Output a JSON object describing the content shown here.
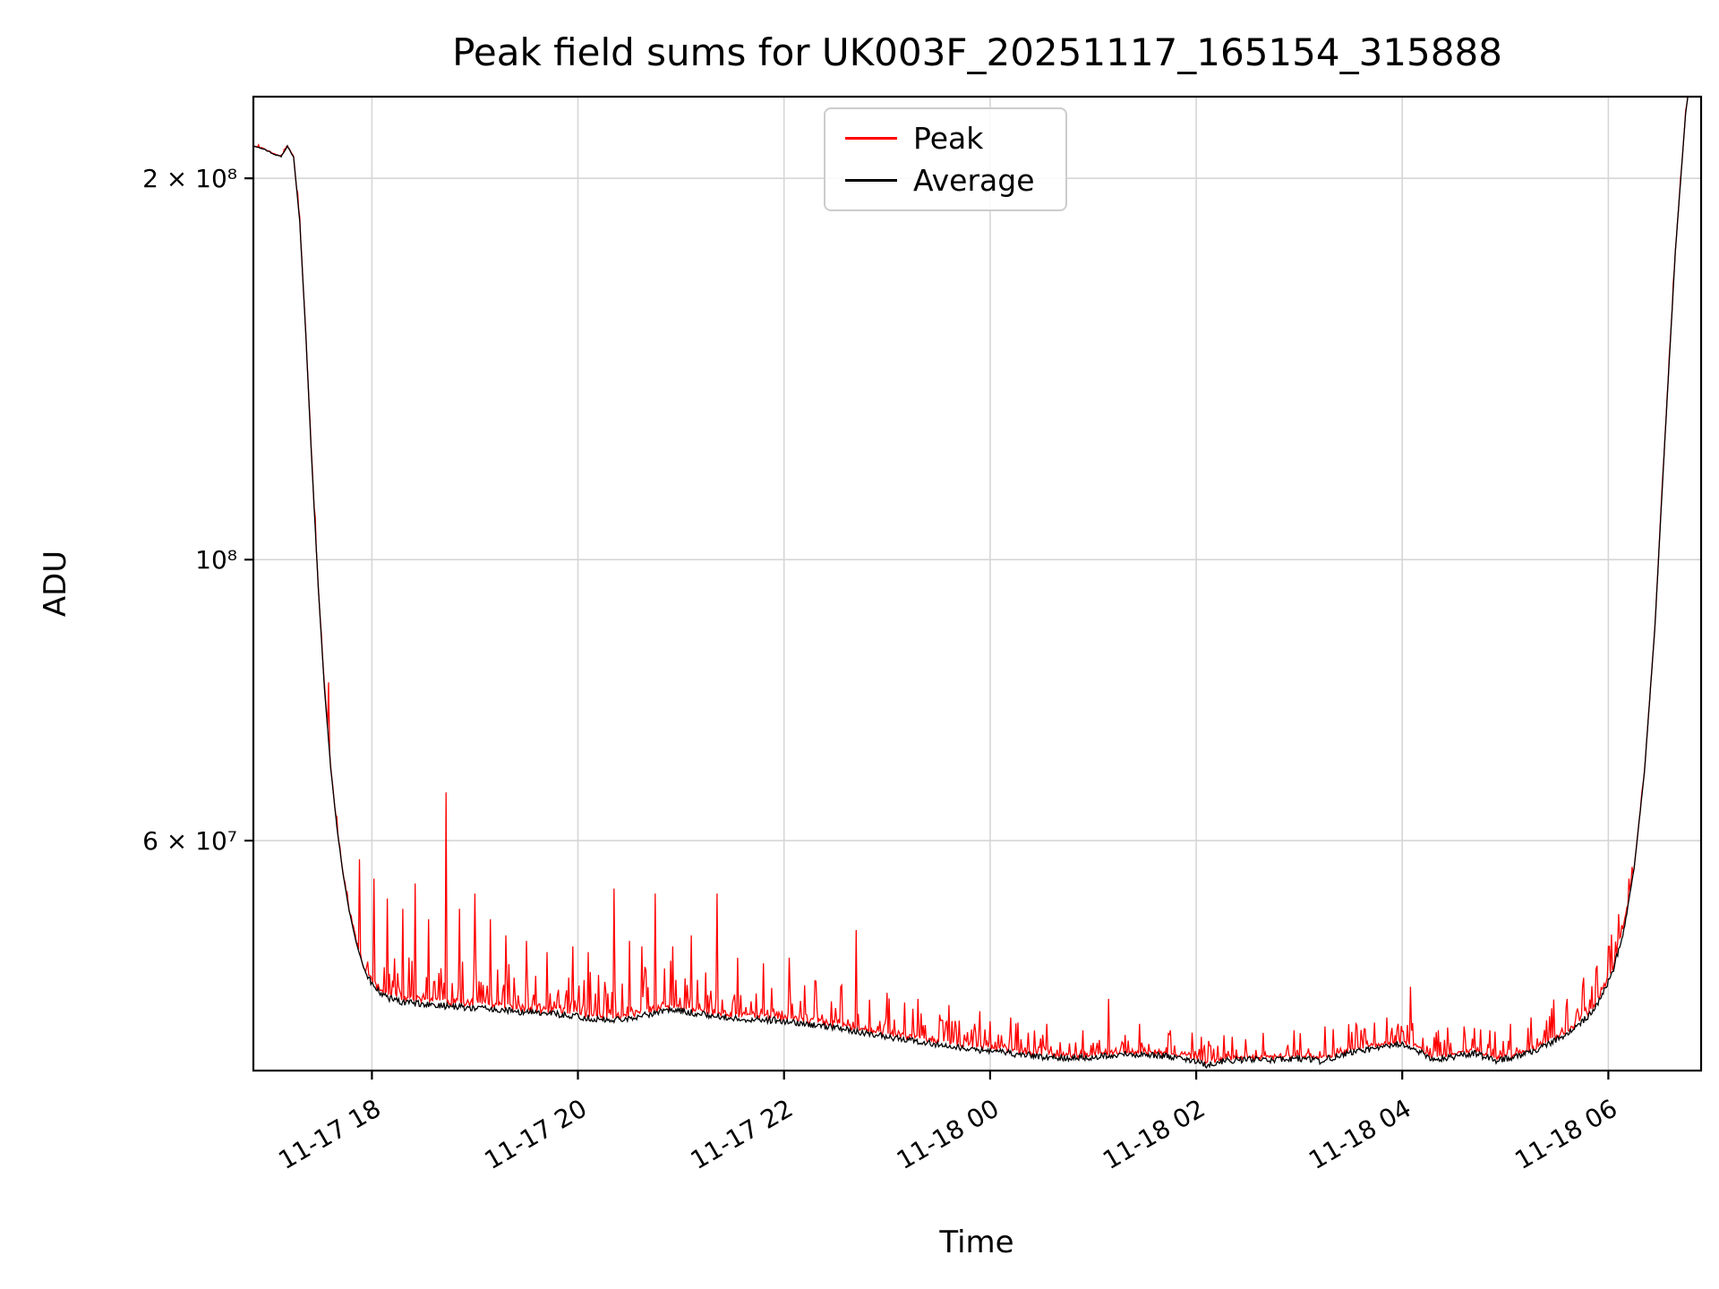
{
  "figure": {
    "background": "#ffffff"
  },
  "chart_data": {
    "type": "line",
    "title": "Peak field sums for UK003F_20251117_165154_315888",
    "xlabel": "Time",
    "ylabel": "ADU",
    "y_scale": "log",
    "grid": true,
    "legend_position": "upper center",
    "x_unit": "hours since 2025-11-17 00:00",
    "xlim": [
      16.85,
      30.9
    ],
    "ylim": [
      39500000.0,
      232000000.0
    ],
    "x_ticks": [
      {
        "value": 18,
        "label": "11-17 18"
      },
      {
        "value": 20,
        "label": "11-17 20"
      },
      {
        "value": 22,
        "label": "11-17 22"
      },
      {
        "value": 24,
        "label": "11-18 00"
      },
      {
        "value": 26,
        "label": "11-18 02"
      },
      {
        "value": 28,
        "label": "11-18 04"
      },
      {
        "value": 30,
        "label": "11-18 06"
      }
    ],
    "y_ticks": [
      {
        "value": 200000000.0,
        "label": "2 × 10⁸"
      },
      {
        "value": 100000000.0,
        "label": "10⁸"
      },
      {
        "value": 60000000.0,
        "label": "6 × 10⁷"
      }
    ],
    "grid_color": "#d6d6d6",
    "series": [
      {
        "name": "Peak",
        "color": "#ff0000",
        "baseline": "follows Average with upward noise spikes",
        "noise_regions": [
          [
            16.85,
            17.28,
            0.004
          ],
          [
            17.28,
            17.95,
            0.012
          ],
          [
            17.95,
            20.2,
            0.055
          ],
          [
            20.2,
            22.6,
            0.05
          ],
          [
            22.6,
            24.6,
            0.04
          ],
          [
            24.6,
            27.1,
            0.028
          ],
          [
            27.1,
            29.35,
            0.032
          ],
          [
            29.35,
            30.25,
            0.045
          ],
          [
            30.25,
            30.9,
            0.006
          ]
        ],
        "spikes": [
          [
            17.58,
            80000000.0
          ],
          [
            17.88,
            58000000.0
          ],
          [
            18.02,
            56000000.0
          ],
          [
            18.15,
            54000000.0
          ],
          [
            18.3,
            53000000.0
          ],
          [
            18.42,
            55500000.0
          ],
          [
            18.55,
            52000000.0
          ],
          [
            18.72,
            65500000.0
          ],
          [
            18.85,
            53000000.0
          ],
          [
            19.0,
            54500000.0
          ],
          [
            19.15,
            52000000.0
          ],
          [
            19.3,
            50500000.0
          ],
          [
            19.5,
            50000000.0
          ],
          [
            19.7,
            49000000.0
          ],
          [
            19.95,
            49500000.0
          ],
          [
            20.1,
            49000000.0
          ],
          [
            20.35,
            55000000.0
          ],
          [
            20.5,
            50000000.0
          ],
          [
            20.62,
            49500000.0
          ],
          [
            20.75,
            54500000.0
          ],
          [
            20.92,
            49500000.0
          ],
          [
            21.1,
            50500000.0
          ],
          [
            21.35,
            54500000.0
          ],
          [
            21.55,
            48500000.0
          ],
          [
            21.8,
            48000000.0
          ],
          [
            22.05,
            48500000.0
          ],
          [
            22.3,
            46500000.0
          ],
          [
            22.55,
            46000000.0
          ],
          [
            22.7,
            51000000.0
          ],
          [
            23.0,
            45500000.0
          ],
          [
            23.3,
            45000000.0
          ],
          [
            23.6,
            44500000.0
          ],
          [
            23.9,
            44000000.0
          ],
          [
            24.2,
            43500000.0
          ],
          [
            24.55,
            43000000.0
          ],
          [
            24.9,
            42500000.0
          ],
          [
            25.15,
            45000000.0
          ],
          [
            25.45,
            43000000.0
          ],
          [
            25.75,
            42500000.0
          ],
          [
            26.05,
            42000000.0
          ],
          [
            26.35,
            42000000.0
          ],
          [
            26.65,
            42300000.0
          ],
          [
            26.95,
            42500000.0
          ],
          [
            27.25,
            42800000.0
          ],
          [
            27.55,
            43000000.0
          ],
          [
            27.85,
            43500000.0
          ],
          [
            28.08,
            46000000.0
          ],
          [
            28.35,
            42500000.0
          ],
          [
            28.6,
            42800000.0
          ],
          [
            28.85,
            42500000.0
          ],
          [
            29.05,
            43000000.0
          ],
          [
            29.25,
            43500000.0
          ],
          [
            29.45,
            44000000.0
          ],
          [
            29.6,
            45000000.0
          ],
          [
            29.75,
            46000000.0
          ],
          [
            29.88,
            47500000.0
          ],
          [
            30.0,
            49500000.0
          ],
          [
            30.1,
            52500000.0
          ],
          [
            30.2,
            56000000.0
          ]
        ]
      },
      {
        "name": "Average",
        "color": "#000000",
        "points": [
          [
            16.85,
            212000000.0
          ],
          [
            16.95,
            211000000.0
          ],
          [
            17.05,
            209000000.0
          ],
          [
            17.12,
            208000000.0
          ],
          [
            17.18,
            212000000.0
          ],
          [
            17.24,
            208000000.0
          ],
          [
            17.3,
            185000000.0
          ],
          [
            17.36,
            150000000.0
          ],
          [
            17.42,
            118000000.0
          ],
          [
            17.48,
            95000000.0
          ],
          [
            17.54,
            79000000.0
          ],
          [
            17.6,
            68500000.0
          ],
          [
            17.66,
            61500000.0
          ],
          [
            17.72,
            56500000.0
          ],
          [
            17.78,
            52800000.0
          ],
          [
            17.85,
            49800000.0
          ],
          [
            17.92,
            47600000.0
          ],
          [
            18.0,
            46200000.0
          ],
          [
            18.1,
            45300000.0
          ],
          [
            18.25,
            44800000.0
          ],
          [
            18.45,
            44600000.0
          ],
          [
            18.75,
            44400000.0
          ],
          [
            19.1,
            44200000.0
          ],
          [
            19.5,
            43900000.0
          ],
          [
            19.9,
            43700000.0
          ],
          [
            20.15,
            43400000.0
          ],
          [
            20.4,
            43300000.0
          ],
          [
            20.65,
            43700000.0
          ],
          [
            20.9,
            44100000.0
          ],
          [
            21.1,
            43900000.0
          ],
          [
            21.35,
            43600000.0
          ],
          [
            21.6,
            43400000.0
          ],
          [
            21.9,
            43300000.0
          ],
          [
            22.2,
            43000000.0
          ],
          [
            22.5,
            42700000.0
          ],
          [
            22.8,
            42300000.0
          ],
          [
            23.1,
            41900000.0
          ],
          [
            23.45,
            41500000.0
          ],
          [
            23.8,
            41100000.0
          ],
          [
            24.15,
            40800000.0
          ],
          [
            24.5,
            40500000.0
          ],
          [
            24.85,
            40400000.0
          ],
          [
            25.1,
            40600000.0
          ],
          [
            25.35,
            40700000.0
          ],
          [
            25.6,
            40600000.0
          ],
          [
            25.85,
            40500000.0
          ],
          [
            26.1,
            39900000.0
          ],
          [
            26.25,
            40200000.0
          ],
          [
            26.5,
            40300000.0
          ],
          [
            26.8,
            40300000.0
          ],
          [
            27.0,
            40400000.0
          ],
          [
            27.2,
            40200000.0
          ],
          [
            27.45,
            40700000.0
          ],
          [
            27.7,
            41100000.0
          ],
          [
            27.95,
            41500000.0
          ],
          [
            28.1,
            41200000.0
          ],
          [
            28.3,
            40300000.0
          ],
          [
            28.5,
            40500000.0
          ],
          [
            28.7,
            40800000.0
          ],
          [
            28.9,
            40200000.0
          ],
          [
            29.1,
            40500000.0
          ],
          [
            29.3,
            41000000.0
          ],
          [
            29.5,
            41800000.0
          ],
          [
            29.7,
            42800000.0
          ],
          [
            29.85,
            44000000.0
          ],
          [
            29.95,
            45500000.0
          ],
          [
            30.05,
            47500000.0
          ],
          [
            30.15,
            51000000.0
          ],
          [
            30.25,
            57000000.0
          ],
          [
            30.35,
            68000000.0
          ],
          [
            30.45,
            88000000.0
          ],
          [
            30.55,
            125000000.0
          ],
          [
            30.65,
            175000000.0
          ],
          [
            30.75,
            225000000.0
          ],
          [
            30.85,
            260000000.0
          ],
          [
            30.9,
            280000000.0
          ]
        ]
      }
    ]
  }
}
